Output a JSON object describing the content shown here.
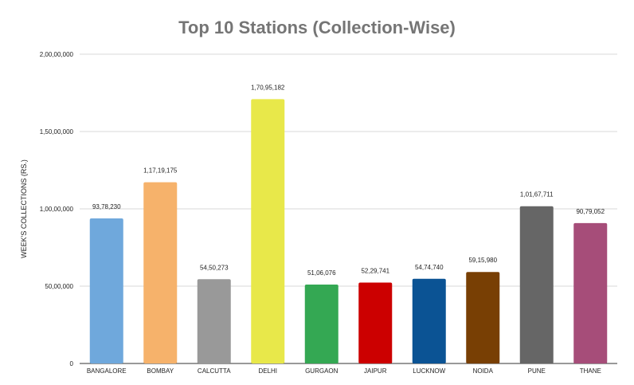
{
  "chart_data": {
    "type": "bar",
    "title": "Top 10 Stations (Collection-Wise)",
    "xlabel": "",
    "ylabel": "WEEK'S COLLECTIONS (RS.)",
    "ylim": [
      0,
      20000000
    ],
    "yticks": [
      0,
      5000000,
      10000000,
      15000000,
      20000000
    ],
    "ytick_labels": [
      "0",
      "50,00,000",
      "1,00,00,000",
      "1,50,00,000",
      "2,00,00,000"
    ],
    "grid": true,
    "categories": [
      "BANGALORE",
      "BOMBAY",
      "CALCUTTA",
      "DELHI",
      "GURGAON",
      "JAIPUR",
      "LUCKNOW",
      "NOIDA",
      "PUNE",
      "THANE"
    ],
    "values": [
      9378230,
      11719175,
      5450273,
      17095182,
      5106076,
      5229741,
      5474740,
      5915980,
      10167711,
      9079052
    ],
    "value_labels": [
      "93,78,230",
      "1,17,19,175",
      "54,50,273",
      "1,70,95,182",
      "51,06,076",
      "52,29,741",
      "54,74,740",
      "59,15,980",
      "1,01,67,711",
      "90,79,052"
    ],
    "colors": [
      "#6fa8dc",
      "#f6b26b",
      "#999999",
      "#e8e84a",
      "#34a853",
      "#cc0000",
      "#0b5394",
      "#783f04",
      "#666666",
      "#a64d79"
    ]
  }
}
